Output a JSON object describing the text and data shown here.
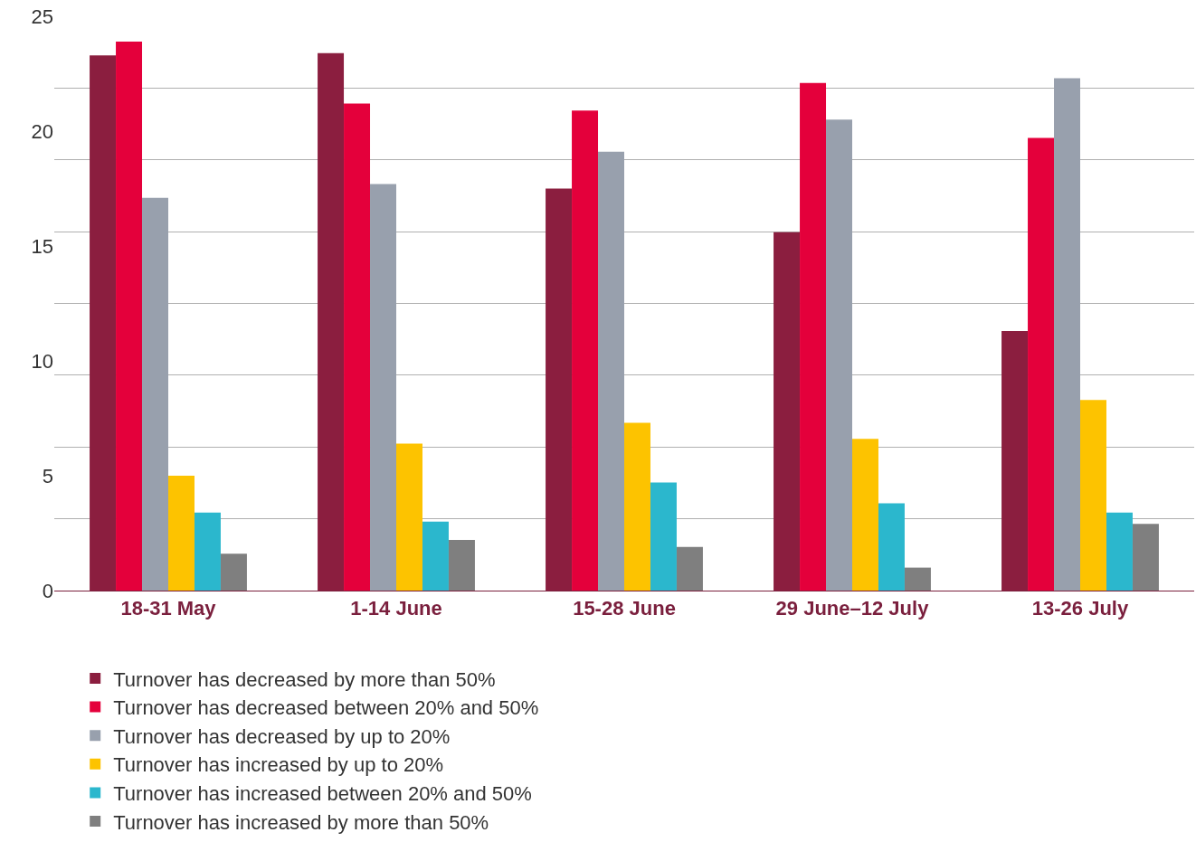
{
  "chart_data": {
    "type": "bar",
    "categories": [
      "18-31 May",
      "1-14 June",
      "15-28 June",
      "29 June–12 July",
      "13-26 July"
    ],
    "series": [
      {
        "name": "Turnover has decreased by more than 50%",
        "color": "#8b1e3f",
        "values": [
          23.3,
          23.4,
          17.5,
          15.6,
          11.3
        ]
      },
      {
        "name": "Turnover has decreased between 20% and 50%",
        "color": "#e4003b",
        "values": [
          23.9,
          21.2,
          20.9,
          22.1,
          19.7
        ]
      },
      {
        "name": "Turnover has decreased by up to 20%",
        "color": "#98a0ad",
        "values": [
          17.1,
          17.7,
          19.1,
          20.5,
          22.3
        ]
      },
      {
        "name": "Turnover has increased by up to 20%",
        "color": "#fdc300",
        "values": [
          5.0,
          6.4,
          7.3,
          6.6,
          8.3
        ]
      },
      {
        "name": "Turnover has increased between 20% and 50%",
        "color": "#2bb7cd",
        "values": [
          3.4,
          3.0,
          4.7,
          3.8,
          3.4
        ]
      },
      {
        "name": "Turnover has increased by more than 50%",
        "color": "#7f7f7f",
        "values": [
          1.6,
          2.2,
          1.9,
          1.0,
          2.9
        ]
      }
    ],
    "ylim": [
      0,
      25
    ],
    "yticks": [
      0,
      {
        "value": 3.125,
        "label": null
      },
      5,
      {
        "value": 6.25,
        "label": null
      },
      {
        "value": 9.375,
        "label": null
      },
      10,
      {
        "value": 12.5,
        "label": null
      },
      15,
      {
        "value": 15.625,
        "label": null
      },
      {
        "value": 18.75,
        "label": null
      },
      20,
      {
        "value": 21.875,
        "label": null
      },
      25
    ],
    "grid": "y",
    "legend": "bottom"
  }
}
